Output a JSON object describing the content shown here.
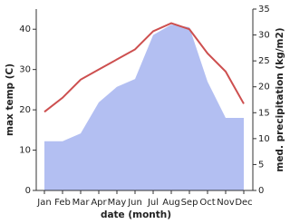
{
  "chart_data": {
    "type": "line",
    "categories": [
      "Jan",
      "Feb",
      "Mar",
      "Apr",
      "May",
      "Jun",
      "Jul",
      "Aug",
      "Sep",
      "Oct",
      "Nov",
      "Dec"
    ],
    "x_label": "date (month)",
    "y_label": "max temp (C)",
    "y2_label": "med. precipitation (kg/m2)",
    "ylim": [
      0,
      45
    ],
    "yticks": [
      0,
      10,
      20,
      30,
      40
    ],
    "y2lim": [
      0,
      35
    ],
    "y2ticks": [
      0,
      5,
      10,
      15,
      20,
      25,
      30,
      35
    ],
    "series": [
      {
        "name": "max temp",
        "type": "line",
        "color": "#cd4f4f",
        "values": [
          19.5,
          23,
          27.5,
          30,
          32.5,
          35,
          39.5,
          41.5,
          40,
          34,
          29.5,
          21.5
        ]
      },
      {
        "name": "med. precipitation",
        "type": "area",
        "axis": "y2",
        "color": "#b3bff2",
        "values": [
          9.5,
          9.5,
          11,
          17,
          20,
          21.5,
          30,
          32,
          31.5,
          21,
          14,
          14
        ]
      }
    ]
  }
}
